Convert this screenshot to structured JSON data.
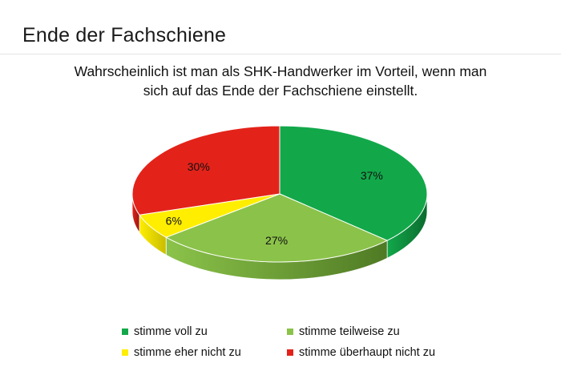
{
  "slide": {
    "title": "Ende der Fachschiene"
  },
  "chart_data": {
    "type": "pie",
    "title_lines": [
      "Wahrscheinlich ist man als SHK-Handwerker im Vorteil, wenn man",
      "sich auf das Ende der Fachschiene einstellt."
    ],
    "three_d": true,
    "legend_position": "bottom",
    "slices": [
      {
        "label": "stimme voll zu",
        "value": 37,
        "display": "37%",
        "color": "#12a84a",
        "side_color": "#0b6b2e"
      },
      {
        "label": "stimme teilweise zu",
        "value": 27,
        "display": "27%",
        "color": "#8bc34a",
        "side_color": "#4f7a24"
      },
      {
        "label": "stimme eher nicht zu",
        "value": 6,
        "display": "6%",
        "color": "#ffee00",
        "side_color": "#c9bc00"
      },
      {
        "label": "stimme überhaupt nicht zu",
        "value": 30,
        "display": "30%",
        "color": "#e3231a",
        "side_color": "#9a1610"
      }
    ]
  }
}
